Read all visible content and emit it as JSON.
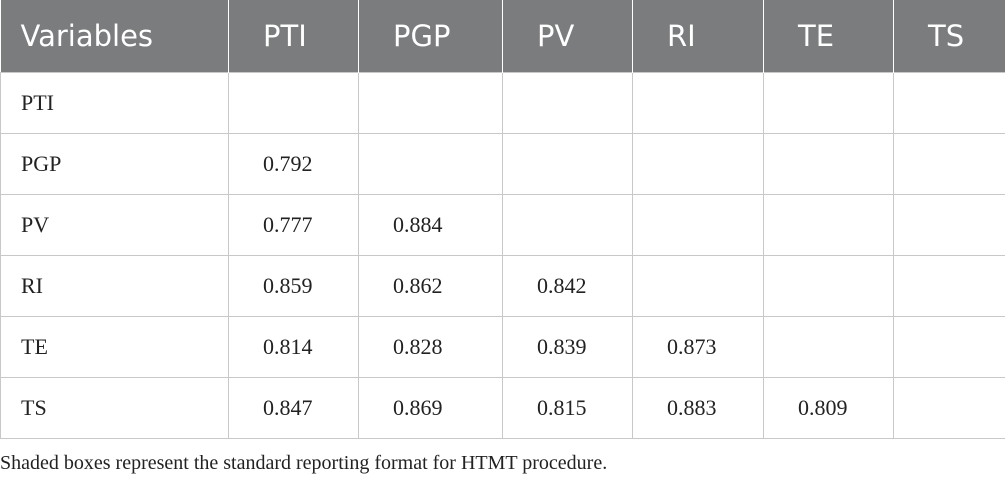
{
  "table": {
    "header": [
      "Variables",
      "PTI",
      "PGP",
      "PV",
      "RI",
      "TE",
      "TS"
    ],
    "rows": [
      [
        "PTI",
        null,
        null,
        null,
        null,
        null,
        null
      ],
      [
        "PGP",
        0.792,
        null,
        null,
        null,
        null,
        null
      ],
      [
        "PV",
        0.777,
        0.884,
        null,
        null,
        null,
        null
      ],
      [
        "RI",
        0.859,
        0.862,
        0.842,
        null,
        null,
        null
      ],
      [
        "TE",
        0.814,
        0.828,
        0.839,
        0.873,
        null,
        null
      ],
      [
        "TS",
        0.847,
        0.869,
        0.815,
        0.883,
        0.809,
        null
      ]
    ]
  },
  "footnote": "Shaded boxes represent the standard reporting format for HTMT procedure."
}
